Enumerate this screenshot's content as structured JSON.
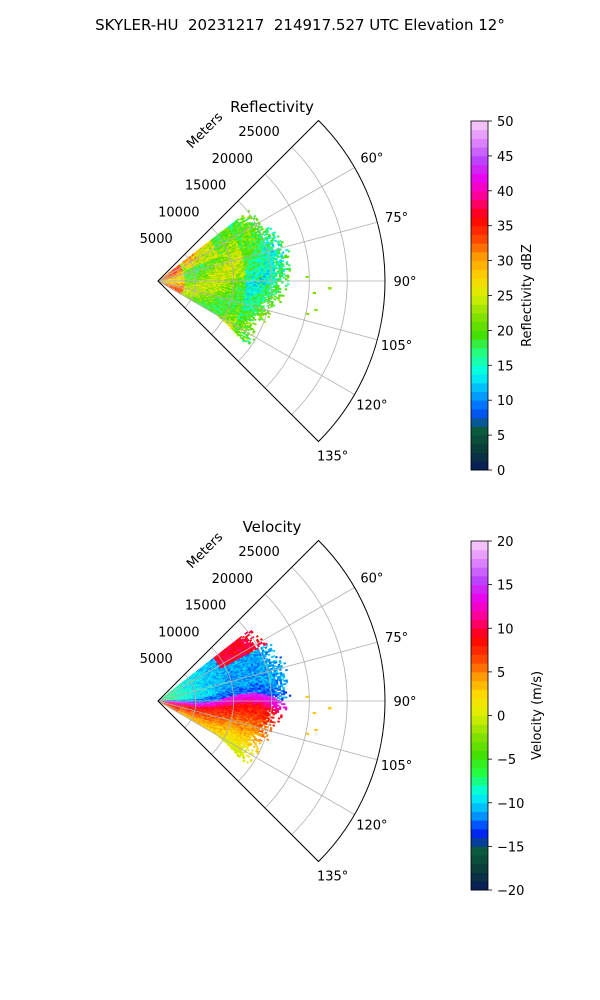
{
  "suptitle": "SKYLER-HU  20231217  214917.527 UTC Elevation 12°",
  "chart_data": [
    {
      "type": "polar-sector",
      "title": "Reflectivity",
      "range_label": "Meters",
      "range_ticks": [
        5000,
        10000,
        15000,
        20000,
        25000
      ],
      "range_tick_labels": [
        "5000",
        "10000",
        "15000",
        "20000",
        "25000"
      ],
      "rlim": [
        0,
        30000
      ],
      "azimuth_range": [
        45,
        135
      ],
      "azimuth_ticks": [
        60,
        75,
        90,
        105,
        120,
        135
      ],
      "azimuth_tick_labels": [
        "60°",
        "75°",
        "90°",
        "105°",
        "120°",
        "135°"
      ],
      "grid": true,
      "colorbar": {
        "label": "Reflectivity dBZ",
        "vmin": 0,
        "vmax": 50,
        "ticks": [
          0,
          5,
          10,
          15,
          20,
          25,
          30,
          35,
          40,
          45,
          50
        ],
        "tick_labels": [
          "0",
          "5",
          "10",
          "15",
          "20",
          "25",
          "30",
          "35",
          "40",
          "45",
          "50"
        ],
        "colors": [
          "#061a5c",
          "#0a3a3a",
          "#0b5a3a",
          "#0055ff",
          "#00aaff",
          "#00ffee",
          "#22ff88",
          "#44e000",
          "#88e000",
          "#d8f000",
          "#ffd200",
          "#ff9c00",
          "#ff4000",
          "#ff0000",
          "#ff0088",
          "#ee00ee",
          "#bb44ff",
          "#e088ff",
          "#f8d0f8"
        ]
      },
      "data_summary": "Echo confined to ranges below about 16000 m; mostly 20–28 dBZ with patches up to about 35 dBZ near the radar."
    },
    {
      "type": "polar-sector",
      "title": "Velocity",
      "range_label": "Meters",
      "range_ticks": [
        5000,
        10000,
        15000,
        20000,
        25000
      ],
      "range_tick_labels": [
        "5000",
        "10000",
        "15000",
        "20000",
        "25000"
      ],
      "rlim": [
        0,
        30000
      ],
      "azimuth_range": [
        45,
        135
      ],
      "azimuth_ticks": [
        60,
        75,
        90,
        105,
        120,
        135
      ],
      "azimuth_tick_labels": [
        "60°",
        "75°",
        "90°",
        "105°",
        "120°",
        "135°"
      ],
      "grid": true,
      "colorbar": {
        "label": "Velocity (m/s)",
        "vmin": -20,
        "vmax": 20,
        "ticks": [
          -20,
          -15,
          -10,
          -5,
          0,
          5,
          10,
          15,
          20
        ],
        "tick_labels": [
          "−20",
          "−15",
          "−10",
          "−5",
          "0",
          "5",
          "10",
          "15",
          "20"
        ],
        "colors": [
          "#061a5c",
          "#0a3a3a",
          "#0b5a3a",
          "#0022ff",
          "#00aaff",
          "#00ffee",
          "#22ff44",
          "#44e000",
          "#88e000",
          "#d8f000",
          "#ffe000",
          "#ff9c00",
          "#ff4000",
          "#ff0000",
          "#ff0088",
          "#ee00ee",
          "#bb44ff",
          "#e088ff",
          "#f8d0f8"
        ]
      },
      "data_summary": "Azimuths below about 88° show −5 to −13 m/s; a band of 10–17 m/s near 90–97°; 0–8 m/s at larger azimuths."
    }
  ]
}
